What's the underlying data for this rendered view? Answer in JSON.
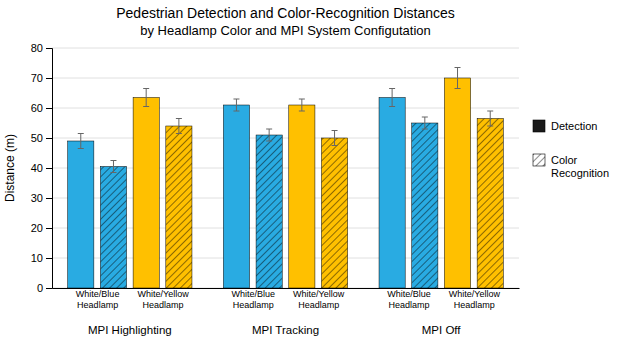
{
  "chart_data": {
    "type": "bar",
    "title": "Pedestrian Detection and Color-Recognition Distances",
    "subtitle": "by Headlamp Color and MPI System Configutation",
    "ylabel": "Distance (m)",
    "groups": [
      "MPI Highlighting",
      "MPI Tracking",
      "MPI Off"
    ],
    "categories": [
      "White/Blue\nHeadlamp",
      "White/Yellow\nHeadlamp",
      "White/Blue\nHeadlamp",
      "White/Yellow\nHeadlamp",
      "White/Blue\nHeadlamp",
      "White/Yellow\nHeadlamp"
    ],
    "colors": [
      "#29ABE2",
      "#FFC000",
      "#29ABE2",
      "#FFC000",
      "#29ABE2",
      "#FFC000"
    ],
    "series": [
      {
        "name": "Detection",
        "values": [
          49,
          63.5,
          61,
          61,
          63.5,
          70
        ],
        "errors": [
          2.5,
          3,
          2,
          2,
          3,
          3.5
        ]
      },
      {
        "name": "Color\nRecognition",
        "values": [
          40.5,
          54,
          51,
          50,
          55,
          56.5
        ],
        "errors": [
          2,
          2.5,
          2,
          2.5,
          2,
          2.5
        ]
      }
    ],
    "ylim": [
      0,
      80
    ],
    "yticks": [
      0,
      10,
      20,
      30,
      40,
      50,
      60,
      70,
      80
    ],
    "grid": true,
    "legend": "right"
  }
}
